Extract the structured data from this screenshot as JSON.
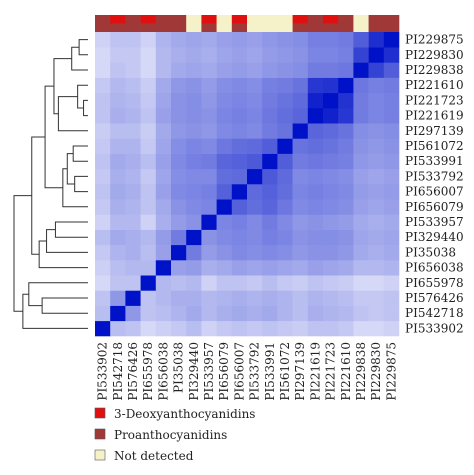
{
  "chart_data": {
    "type": "heatmap",
    "labels": [
      "PI533902",
      "PI542718",
      "PI576426",
      "PI655978",
      "PI656038",
      "PI35038",
      "PI329440",
      "PI533957",
      "PI656079",
      "PI656007",
      "PI533792",
      "PI533991",
      "PI561072",
      "PI297139",
      "PI221619",
      "PI221723",
      "PI221610",
      "PI229838",
      "PI229830",
      "PI229875"
    ],
    "annotation": {
      "categories": [
        "3-Deoxyanthocyanidins",
        "Proanthocyanidins",
        "Not detected"
      ],
      "colors": [
        "#e01010",
        "#a03838",
        "#f5f1c8"
      ],
      "top": [
        1,
        0,
        1,
        0,
        1,
        1,
        2,
        0,
        2,
        0,
        2,
        2,
        2,
        0,
        1,
        0,
        1,
        2,
        1,
        1
      ],
      "bottom": [
        1,
        1,
        1,
        1,
        1,
        1,
        2,
        1,
        2,
        1,
        2,
        2,
        2,
        1,
        1,
        1,
        1,
        2,
        1,
        1
      ]
    },
    "color_scale": {
      "low": "#ffffff",
      "high": "#0012c8",
      "range": [
        0,
        1
      ]
    },
    "diagonal_value": 1,
    "matrix": [
      [
        1.0,
        0.22,
        0.2,
        0.12,
        0.15,
        0.18,
        0.22,
        0.14,
        0.18,
        0.2,
        0.18,
        0.2,
        0.18,
        0.16,
        0.2,
        0.2,
        0.18,
        0.12,
        0.12,
        0.14
      ],
      [
        0.22,
        1.0,
        0.38,
        0.2,
        0.22,
        0.26,
        0.3,
        0.24,
        0.28,
        0.3,
        0.28,
        0.3,
        0.26,
        0.22,
        0.28,
        0.26,
        0.24,
        0.2,
        0.18,
        0.2
      ],
      [
        0.2,
        0.38,
        1.0,
        0.2,
        0.24,
        0.28,
        0.28,
        0.24,
        0.26,
        0.28,
        0.26,
        0.28,
        0.26,
        0.22,
        0.26,
        0.24,
        0.22,
        0.18,
        0.18,
        0.2
      ],
      [
        0.12,
        0.2,
        0.2,
        1.0,
        0.24,
        0.22,
        0.24,
        0.14,
        0.2,
        0.2,
        0.18,
        0.22,
        0.18,
        0.16,
        0.2,
        0.18,
        0.16,
        0.12,
        0.12,
        0.14
      ],
      [
        0.15,
        0.22,
        0.24,
        0.24,
        1.0,
        0.34,
        0.36,
        0.28,
        0.3,
        0.34,
        0.32,
        0.34,
        0.32,
        0.3,
        0.34,
        0.32,
        0.3,
        0.24,
        0.24,
        0.26
      ],
      [
        0.18,
        0.26,
        0.28,
        0.22,
        0.34,
        1.0,
        0.5,
        0.36,
        0.4,
        0.44,
        0.42,
        0.44,
        0.42,
        0.38,
        0.4,
        0.4,
        0.38,
        0.3,
        0.28,
        0.3
      ],
      [
        0.22,
        0.3,
        0.28,
        0.24,
        0.36,
        0.5,
        1.0,
        0.4,
        0.44,
        0.46,
        0.44,
        0.48,
        0.46,
        0.4,
        0.42,
        0.42,
        0.4,
        0.32,
        0.3,
        0.32
      ],
      [
        0.14,
        0.24,
        0.24,
        0.14,
        0.28,
        0.36,
        0.4,
        1.0,
        0.46,
        0.48,
        0.44,
        0.5,
        0.44,
        0.38,
        0.4,
        0.38,
        0.36,
        0.3,
        0.28,
        0.3
      ],
      [
        0.18,
        0.28,
        0.26,
        0.2,
        0.3,
        0.4,
        0.44,
        0.46,
        1.0,
        0.62,
        0.56,
        0.6,
        0.52,
        0.44,
        0.46,
        0.44,
        0.42,
        0.34,
        0.32,
        0.34
      ],
      [
        0.2,
        0.3,
        0.28,
        0.2,
        0.34,
        0.44,
        0.46,
        0.48,
        0.62,
        1.0,
        0.58,
        0.62,
        0.56,
        0.46,
        0.48,
        0.46,
        0.44,
        0.36,
        0.34,
        0.36
      ],
      [
        0.18,
        0.28,
        0.26,
        0.18,
        0.32,
        0.42,
        0.44,
        0.44,
        0.56,
        0.58,
        1.0,
        0.66,
        0.58,
        0.44,
        0.46,
        0.44,
        0.42,
        0.34,
        0.32,
        0.34
      ],
      [
        0.2,
        0.3,
        0.28,
        0.22,
        0.34,
        0.44,
        0.48,
        0.5,
        0.6,
        0.62,
        0.66,
        1.0,
        0.64,
        0.5,
        0.52,
        0.5,
        0.48,
        0.38,
        0.36,
        0.38
      ],
      [
        0.18,
        0.26,
        0.26,
        0.18,
        0.32,
        0.42,
        0.46,
        0.44,
        0.52,
        0.56,
        0.58,
        0.64,
        1.0,
        0.54,
        0.56,
        0.54,
        0.5,
        0.4,
        0.38,
        0.4
      ],
      [
        0.16,
        0.22,
        0.22,
        0.16,
        0.3,
        0.38,
        0.4,
        0.38,
        0.44,
        0.46,
        0.44,
        0.5,
        0.54,
        1.0,
        0.6,
        0.58,
        0.54,
        0.42,
        0.4,
        0.42
      ],
      [
        0.2,
        0.28,
        0.26,
        0.2,
        0.34,
        0.4,
        0.42,
        0.4,
        0.46,
        0.48,
        0.46,
        0.52,
        0.56,
        0.6,
        1.0,
        0.92,
        0.82,
        0.5,
        0.46,
        0.48
      ],
      [
        0.2,
        0.26,
        0.24,
        0.18,
        0.32,
        0.4,
        0.42,
        0.38,
        0.44,
        0.46,
        0.44,
        0.5,
        0.54,
        0.58,
        0.92,
        1.0,
        0.84,
        0.5,
        0.46,
        0.48
      ],
      [
        0.18,
        0.24,
        0.22,
        0.16,
        0.3,
        0.38,
        0.4,
        0.36,
        0.42,
        0.44,
        0.42,
        0.48,
        0.5,
        0.54,
        0.82,
        0.84,
        1.0,
        0.52,
        0.48,
        0.5
      ],
      [
        0.12,
        0.2,
        0.18,
        0.12,
        0.24,
        0.3,
        0.32,
        0.3,
        0.34,
        0.36,
        0.34,
        0.38,
        0.4,
        0.42,
        0.5,
        0.5,
        0.52,
        1.0,
        0.76,
        0.64
      ],
      [
        0.12,
        0.18,
        0.18,
        0.12,
        0.24,
        0.28,
        0.3,
        0.28,
        0.32,
        0.34,
        0.32,
        0.36,
        0.38,
        0.4,
        0.46,
        0.46,
        0.48,
        0.76,
        1.0,
        0.86
      ],
      [
        0.14,
        0.2,
        0.2,
        0.14,
        0.26,
        0.3,
        0.32,
        0.3,
        0.34,
        0.36,
        0.34,
        0.38,
        0.4,
        0.42,
        0.48,
        0.48,
        0.5,
        0.64,
        0.86,
        1.0
      ]
    ],
    "dendrogram": [
      {
        "a": 18,
        "b": 19,
        "h": 0.12
      },
      {
        "a": 14,
        "b": 15,
        "h": 0.06
      },
      {
        "a": "n1",
        "b": 16,
        "h": 0.14
      },
      {
        "a": 17,
        "b": "n0",
        "h": 0.22
      },
      {
        "a": 9,
        "b": 10,
        "h": 0.18
      },
      {
        "a": 11,
        "b": 12,
        "h": 0.2
      },
      {
        "a": "n4",
        "b": "n5",
        "h": 0.28
      },
      {
        "a": 8,
        "b": "n6",
        "h": 0.34
      },
      {
        "a": 13,
        "b": "n2",
        "h": 0.4
      },
      {
        "a": "n3",
        "b": "n8",
        "h": 0.46
      },
      {
        "a": "n7",
        "b": "n9",
        "h": 0.58
      },
      {
        "a": 6,
        "b": 7,
        "h": 0.44
      },
      {
        "a": 5,
        "b": "n11",
        "h": 0.56
      },
      {
        "a": 4,
        "b": "n12",
        "h": 0.66
      },
      {
        "a": "n13",
        "b": "n10",
        "h": 0.76
      },
      {
        "a": 1,
        "b": 2,
        "h": 0.62
      },
      {
        "a": 3,
        "b": "n15",
        "h": 0.8
      },
      {
        "a": 0,
        "b": "n16",
        "h": 0.88
      },
      {
        "a": "n17",
        "b": "n14",
        "h": 1.0
      }
    ]
  }
}
